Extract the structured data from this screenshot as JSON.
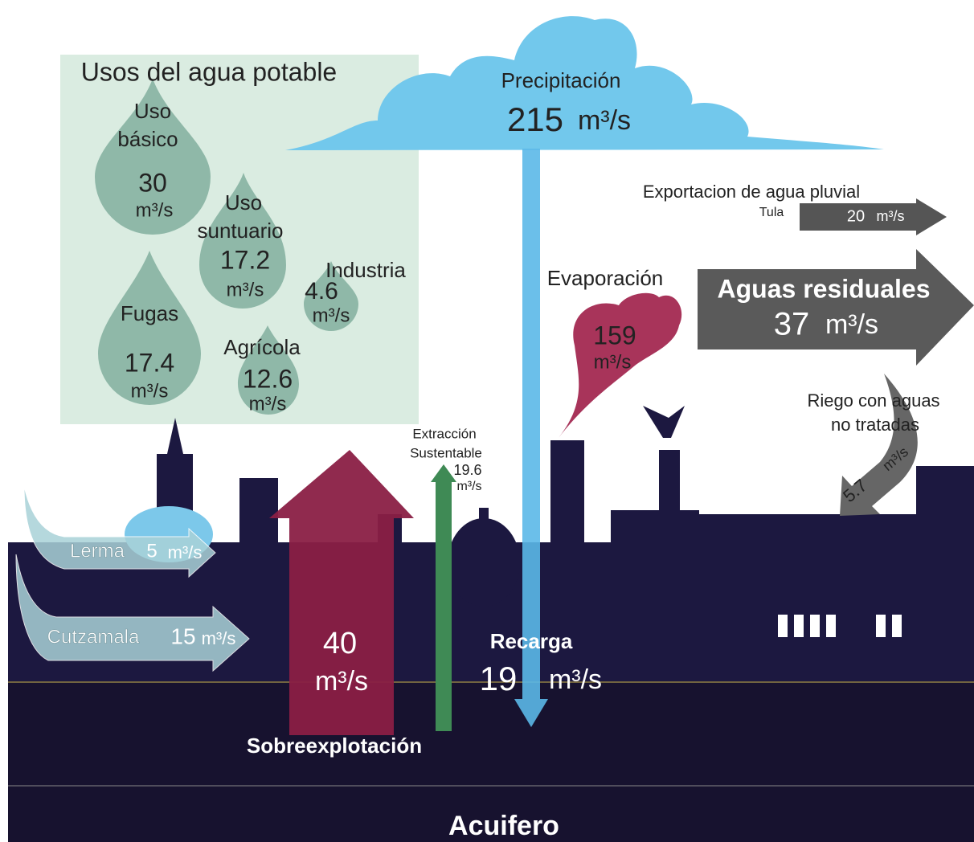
{
  "usos": {
    "title": "Usos del agua potable",
    "drops": [
      {
        "label": [
          "Uso",
          "básico"
        ],
        "value": 30,
        "unit": "m³/s"
      },
      {
        "label": [
          "Uso",
          "suntuario"
        ],
        "value": 17.2,
        "unit": "m³/s"
      },
      {
        "label": [
          "Industria"
        ],
        "value": 4.6,
        "unit": "m³/s"
      },
      {
        "label": [
          "Fugas"
        ],
        "value": 17.4,
        "unit": "m³/s"
      },
      {
        "label": [
          "Agrícola"
        ],
        "value": 12.6,
        "unit": "m³/s"
      }
    ]
  },
  "precipitacion": {
    "label": "Precipitación",
    "value": 215,
    "unit": "m³/s"
  },
  "exportacion": {
    "label": "Exportacion de agua pluvial",
    "sublabel": "Tula",
    "value": 20,
    "unit": "m³/s"
  },
  "aguas_residuales": {
    "label": "Aguas residuales",
    "value": 37,
    "unit": "m³/s"
  },
  "evaporacion": {
    "label": "Evaporación",
    "value": 159,
    "unit": "m³/s"
  },
  "riego": {
    "label": [
      "Riego con aguas",
      "no tratadas"
    ],
    "value": 5.7,
    "unit": "m³/s"
  },
  "extraccion": {
    "label": [
      "Extracción",
      "Sustentable"
    ],
    "value": 19.6,
    "unit": "m³/s"
  },
  "lerma": {
    "label": "Lerma",
    "value": 5,
    "unit": "m³/s"
  },
  "cutzamala": {
    "label": "Cutzamala",
    "value": 15,
    "unit": "m³/s"
  },
  "sobreexplotacion": {
    "label": "Sobreexplotación",
    "value": 40,
    "unit": "m³/s"
  },
  "recarga": {
    "label": "Recarga",
    "value": 19,
    "unit": "m³/s"
  },
  "acuifero": {
    "label": "Acuifero"
  }
}
